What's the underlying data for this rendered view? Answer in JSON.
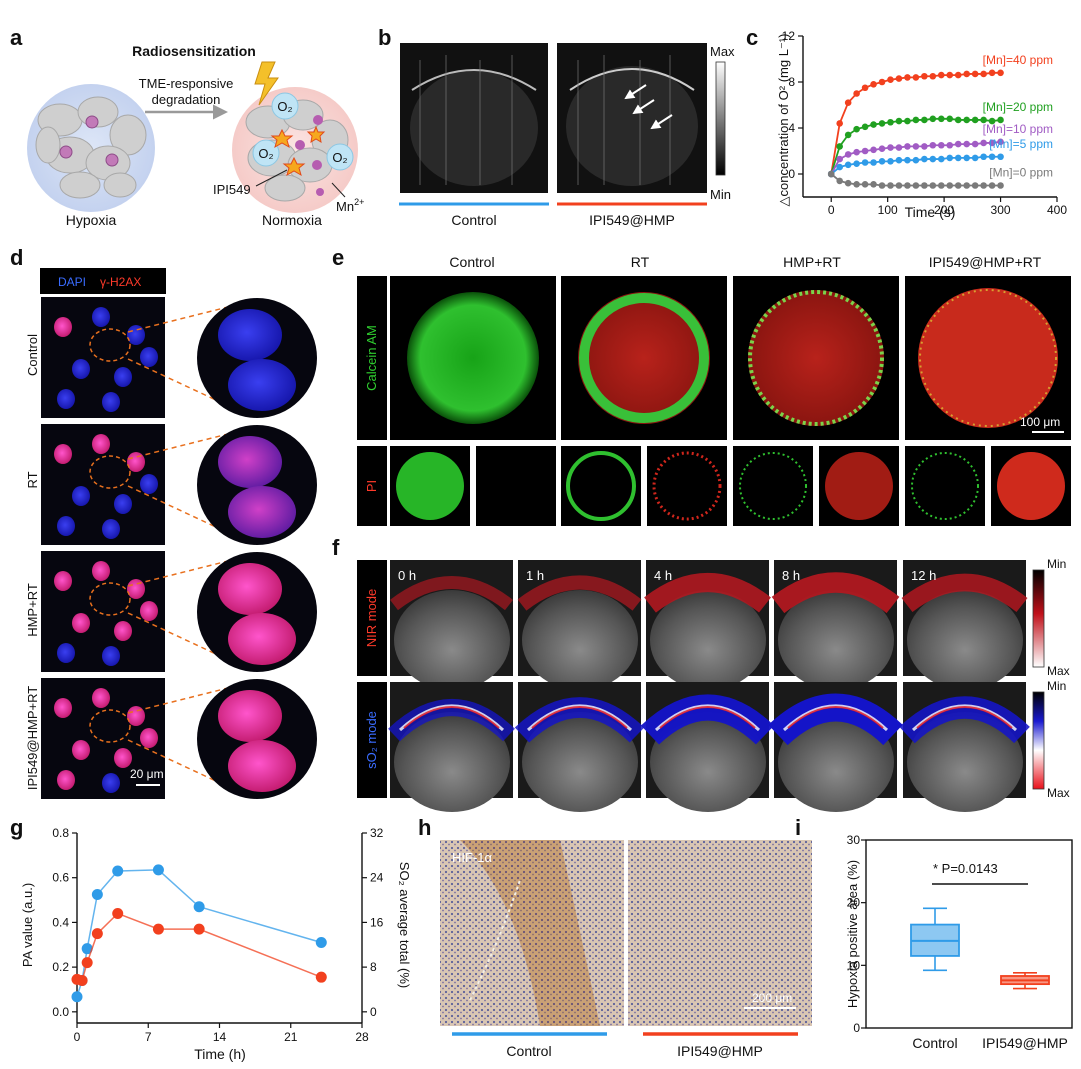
{
  "panel_letters": [
    "a",
    "b",
    "c",
    "d",
    "e",
    "f",
    "g",
    "h",
    "i"
  ],
  "a": {
    "title": "Radiosensitization",
    "arrow_label_1": "TME-responsive",
    "arrow_label_2": "degradation",
    "left_caption": "Hypoxia",
    "right_caption": "Normoxia",
    "drug_label": "IPI549",
    "ion_label": "Mn",
    "ion_charge": "2+",
    "o2_label": "O₂"
  },
  "b": {
    "scale_max": "Max",
    "scale_min": "Min",
    "captions": [
      "Control",
      "IPI549@HMP"
    ]
  },
  "d": {
    "legend_dapi": "DAPI",
    "legend_h2ax": "γ-H2AX",
    "rows": [
      "Control",
      "RT",
      "HMP+RT",
      "IPI549@HMP+RT"
    ],
    "scale_bar": "20 μm"
  },
  "e": {
    "columns": [
      "Control",
      "RT",
      "HMP+RT",
      "IPI549@HMP+RT"
    ],
    "row_label_1": "Calcein AM",
    "row_label_2": "PI",
    "scale_bar": "100 μm"
  },
  "f": {
    "times": [
      "0 h",
      "1 h",
      "4 h",
      "8 h",
      "12 h"
    ],
    "row_label_1": "NIR mode",
    "row_label_2": "sO₂ mode",
    "scale_min": "Min",
    "scale_max": "Max"
  },
  "h": {
    "stain": "HIF-1α",
    "scale_bar": "200 μm",
    "captions": [
      "Control",
      "IPI549@HMP"
    ]
  },
  "colors": {
    "blue": "#2f9be8",
    "red": "#f2401e",
    "green": "#20a020",
    "purple": "#a15cc4",
    "gray": "#7a7a7a",
    "orange_dash": "#e8701e"
  },
  "chart_data": [
    {
      "id": "c",
      "type": "line",
      "xlabel": "Time (s)",
      "ylabel": "△concentration of O² (mg L⁻¹)",
      "xlim": [
        -50,
        400
      ],
      "ylim": [
        -2,
        12
      ],
      "xticks": [
        "0",
        "100",
        "200",
        "300",
        "400"
      ],
      "yticks": [
        "0",
        "4",
        "8",
        "12"
      ],
      "x": [
        0,
        15,
        30,
        45,
        60,
        75,
        90,
        105,
        120,
        135,
        150,
        165,
        180,
        195,
        210,
        225,
        240,
        255,
        270,
        285,
        300
      ],
      "series": [
        {
          "name": "[Mn]=40 ppm",
          "color": "#f2401e",
          "values": [
            0,
            4.4,
            6.2,
            7.0,
            7.5,
            7.8,
            8.0,
            8.2,
            8.3,
            8.4,
            8.4,
            8.5,
            8.5,
            8.6,
            8.6,
            8.6,
            8.7,
            8.7,
            8.7,
            8.8,
            8.8
          ]
        },
        {
          "name": "[Mn]=20 ppm",
          "color": "#20a020",
          "values": [
            0,
            2.4,
            3.4,
            3.9,
            4.1,
            4.3,
            4.4,
            4.5,
            4.6,
            4.6,
            4.7,
            4.7,
            4.8,
            4.8,
            4.8,
            4.7,
            4.7,
            4.7,
            4.7,
            4.6,
            4.7
          ]
        },
        {
          "name": "[Mn]=10 ppm",
          "color": "#a15cc4",
          "values": [
            0,
            1.3,
            1.7,
            1.9,
            2.0,
            2.1,
            2.2,
            2.3,
            2.3,
            2.4,
            2.4,
            2.4,
            2.5,
            2.5,
            2.5,
            2.6,
            2.6,
            2.6,
            2.7,
            2.7,
            2.8
          ]
        },
        {
          "name": "[Mn]=5 ppm",
          "color": "#2f9be8",
          "values": [
            0,
            0.6,
            0.8,
            0.9,
            1.0,
            1.0,
            1.1,
            1.1,
            1.2,
            1.2,
            1.2,
            1.3,
            1.3,
            1.3,
            1.4,
            1.4,
            1.4,
            1.4,
            1.5,
            1.5,
            1.5
          ]
        },
        {
          "name": "[Mn]=0 ppm",
          "color": "#7a7a7a",
          "values": [
            0,
            -0.6,
            -0.8,
            -0.9,
            -0.9,
            -0.9,
            -1.0,
            -1.0,
            -1.0,
            -1.0,
            -1.0,
            -1.0,
            -1.0,
            -1.0,
            -1.0,
            -1.0,
            -1.0,
            -1.0,
            -1.0,
            -1.0,
            -1.0
          ]
        }
      ]
    },
    {
      "id": "g",
      "type": "line",
      "xlabel": "Time (h)",
      "ylabel": "PA value (a.u.)",
      "y2label": "SO₂ average total (%)",
      "xlim": [
        0,
        28
      ],
      "ylim": [
        -0.05,
        0.8
      ],
      "y2lim": [
        -2,
        32
      ],
      "xticks": [
        "0",
        "7",
        "14",
        "21",
        "28"
      ],
      "yticks": [
        "0.0",
        "0.2",
        "0.4",
        "0.6",
        "0.8"
      ],
      "y2ticks": [
        "0",
        "8",
        "16",
        "24",
        "32"
      ],
      "series": [
        {
          "axis": "right",
          "color": "#2f9be8",
          "x": [
            0,
            0.5,
            1,
            2,
            4,
            8,
            12,
            24
          ],
          "values": [
            2.7,
            5.6,
            11.3,
            21.0,
            25.2,
            25.4,
            18.8,
            12.4
          ]
        },
        {
          "axis": "left",
          "color": "#f2401e",
          "x": [
            0,
            0.5,
            1,
            2,
            4,
            8,
            12,
            24
          ],
          "values": [
            0.145,
            0.14,
            0.22,
            0.35,
            0.44,
            0.37,
            0.37,
            0.155
          ]
        }
      ]
    },
    {
      "id": "i",
      "type": "box",
      "ylabel": "Hypoxia positive area (%)",
      "ylim": [
        0,
        30
      ],
      "yticks": [
        "0",
        "10",
        "20",
        "30"
      ],
      "categories": [
        "Control",
        "IPI549@HMP"
      ],
      "boxes": [
        {
          "min": 9.2,
          "q1": 11.5,
          "median": 13.9,
          "q3": 16.5,
          "max": 19.1,
          "color": "#2f9be8"
        },
        {
          "min": 6.3,
          "q1": 7.0,
          "median": 7.6,
          "q3": 8.3,
          "max": 8.8,
          "color": "#f2401e"
        }
      ],
      "annotation": "* P=0.0143"
    }
  ]
}
